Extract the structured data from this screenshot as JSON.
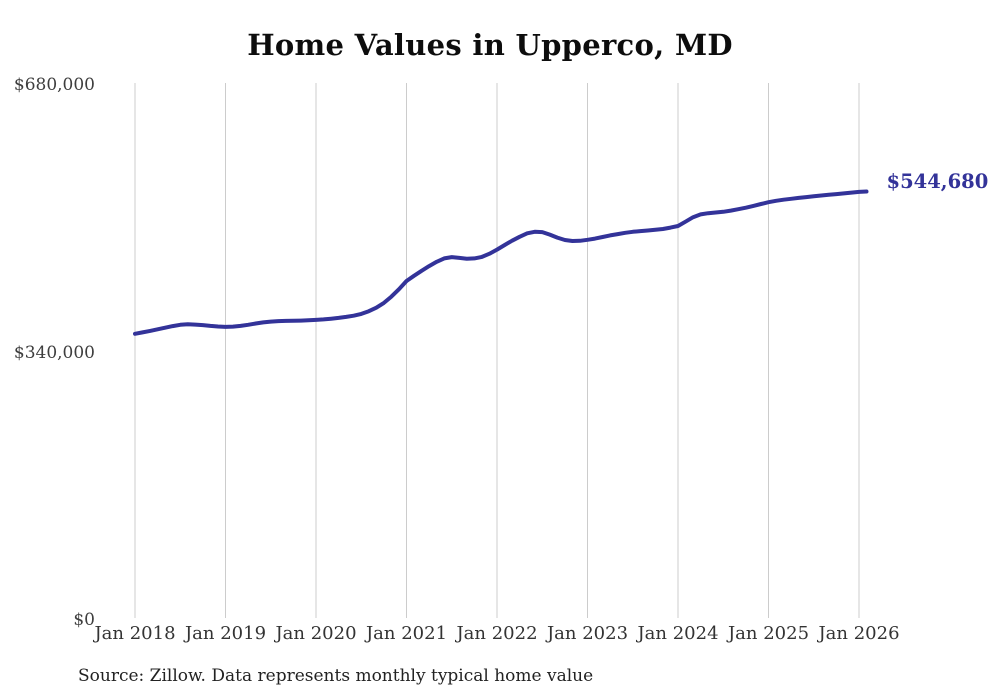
{
  "chart_data": {
    "type": "line",
    "title": "Home Values in Upperco, MD",
    "source": "Source: Zillow. Data represents monthly typical home value",
    "end_label": "$544,680",
    "end_value": 544680,
    "series_name": "Monthly typical home value",
    "line_color": "#333399",
    "grid_color": "#cccccc",
    "legend": "none",
    "grid": "vertical-only",
    "ylim": [
      0,
      680000
    ],
    "y_ticks": [
      {
        "label": "$0",
        "value": 0
      },
      {
        "label": "$340,000",
        "value": 340000
      },
      {
        "label": "$680,000",
        "value": 680000
      }
    ],
    "x_ticks": [
      "Jan 2018",
      "Jan 2019",
      "Jan 2020",
      "Jan 2021",
      "Jan 2022",
      "Jan 2023",
      "Jan 2024",
      "Jan 2025",
      "Jan 2026"
    ],
    "x_start": "Jan 2018",
    "x_interval": "monthly",
    "values": [
      363800,
      365500,
      367500,
      369500,
      371500,
      373500,
      375200,
      375800,
      375500,
      374800,
      373800,
      373000,
      372600,
      372900,
      373800,
      375200,
      376800,
      378200,
      379300,
      379900,
      380200,
      380300,
      380500,
      380900,
      381400,
      382100,
      383000,
      384000,
      385200,
      386800,
      389000,
      392500,
      397000,
      403000,
      411000,
      420500,
      430900,
      437500,
      443800,
      449800,
      455300,
      459600,
      461200,
      460300,
      459200,
      459600,
      461500,
      465600,
      470800,
      476500,
      482100,
      487100,
      491500,
      493400,
      493000,
      489800,
      486000,
      483000,
      481700,
      482000,
      483200,
      484800,
      486800,
      488800,
      490500,
      492200,
      493400,
      494300,
      495100,
      495900,
      497000,
      498700,
      500800,
      506200,
      512000,
      515500,
      517100,
      517900,
      518800,
      520300,
      522100,
      524100,
      526300,
      528800,
      531000,
      532800,
      534200,
      535400,
      536500,
      537500,
      538500,
      539500,
      540400,
      541300,
      542200,
      543200,
      544100,
      544680
    ]
  }
}
